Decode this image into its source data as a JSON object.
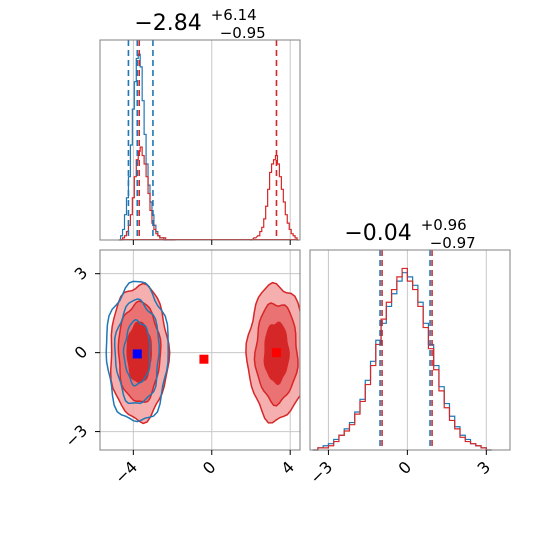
{
  "chart_data": {
    "type": "corner",
    "colors": {
      "red": "#d62728",
      "blue": "#1f77b4",
      "grid": "#c8c8c8",
      "axis": "#808080"
    },
    "param1": {
      "title": {
        "median": "−2.84",
        "plus": "+6.14",
        "minus": "−0.95"
      },
      "ticks": [
        -4,
        0,
        4
      ],
      "tick_labels": [
        "−4",
        "0",
        "4"
      ],
      "xlim": [
        -5.7,
        4.5
      ],
      "blue_quantiles": [
        -4.25,
        -3.8,
        -3.0
      ],
      "red_quantiles": [
        -3.7,
        3.3
      ],
      "hist_blue": {
        "x": [
          -4.7,
          -4.6,
          -4.5,
          -4.4,
          -4.3,
          -4.2,
          -4.1,
          -4.0,
          -3.9,
          -3.8,
          -3.7,
          -3.6,
          -3.5,
          -3.4,
          -3.3,
          -3.2,
          -3.1,
          -3.0,
          -2.9,
          -2.8,
          -2.7,
          -2.6,
          -2.5,
          -2.4
        ],
        "y": [
          0.0,
          0.02,
          0.05,
          0.12,
          0.2,
          0.3,
          0.45,
          0.62,
          0.75,
          0.86,
          0.88,
          0.82,
          0.66,
          0.5,
          0.36,
          0.26,
          0.18,
          0.12,
          0.07,
          0.04,
          0.02,
          0.01,
          0.01,
          0.0
        ]
      },
      "hist_red": {
        "x": [
          -4.6,
          -4.5,
          -4.4,
          -4.3,
          -4.2,
          -4.1,
          -4.0,
          -3.9,
          -3.8,
          -3.7,
          -3.6,
          -3.5,
          -3.4,
          -3.3,
          -3.2,
          -3.1,
          -3.0,
          -2.9,
          -2.8,
          -2.7,
          -2.6,
          -2.5,
          -2.4,
          -2.3,
          -2.2,
          -1.9,
          2.0,
          2.2,
          2.4,
          2.5,
          2.6,
          2.7,
          2.8,
          2.9,
          3.0,
          3.1,
          3.2,
          3.3,
          3.4,
          3.5,
          3.6,
          3.7,
          3.8,
          3.9,
          4.0,
          4.1,
          4.2,
          4.3,
          4.4
        ],
        "y": [
          0.0,
          0.01,
          0.02,
          0.04,
          0.07,
          0.12,
          0.2,
          0.3,
          0.38,
          0.42,
          0.44,
          0.4,
          0.36,
          0.3,
          0.22,
          0.14,
          0.08,
          0.05,
          0.03,
          0.02,
          0.01,
          0.01,
          0.01,
          0.0,
          0.0,
          0.0,
          0.0,
          0.01,
          0.02,
          0.04,
          0.06,
          0.1,
          0.16,
          0.24,
          0.32,
          0.36,
          0.38,
          0.4,
          0.36,
          0.3,
          0.24,
          0.18,
          0.12,
          0.08,
          0.05,
          0.03,
          0.02,
          0.01,
          0.0
        ]
      }
    },
    "param2": {
      "title": {
        "median": "−0.04",
        "plus": "+0.96",
        "minus": "−0.97"
      },
      "ticks": [
        -3,
        0,
        3
      ],
      "tick_labels": [
        "−3",
        "0",
        "3"
      ],
      "lim": [
        -3.7,
        3.9
      ],
      "blue_quantiles": [
        -1.0,
        0.9
      ],
      "red_quantiles": [
        -1.0,
        0.9
      ],
      "hist_blue": {
        "x": [
          -3.5,
          -3.3,
          -3.1,
          -2.9,
          -2.7,
          -2.5,
          -2.3,
          -2.1,
          -1.9,
          -1.7,
          -1.5,
          -1.3,
          -1.1,
          -0.9,
          -0.7,
          -0.5,
          -0.3,
          -0.1,
          0.1,
          0.3,
          0.5,
          0.7,
          0.9,
          1.1,
          1.3,
          1.5,
          1.7,
          1.9,
          2.1,
          2.3,
          2.5,
          2.7,
          2.9,
          3.1
        ],
        "y": [
          0.0,
          0.01,
          0.02,
          0.03,
          0.05,
          0.07,
          0.1,
          0.13,
          0.18,
          0.24,
          0.33,
          0.42,
          0.52,
          0.6,
          0.68,
          0.74,
          0.8,
          0.84,
          0.82,
          0.78,
          0.7,
          0.6,
          0.5,
          0.4,
          0.3,
          0.22,
          0.16,
          0.11,
          0.07,
          0.05,
          0.03,
          0.02,
          0.01,
          0.0
        ]
      },
      "hist_red": {
        "x": [
          -3.5,
          -3.3,
          -3.1,
          -2.9,
          -2.7,
          -2.5,
          -2.3,
          -2.1,
          -1.9,
          -1.7,
          -1.5,
          -1.3,
          -1.1,
          -0.9,
          -0.7,
          -0.5,
          -0.3,
          -0.1,
          0.1,
          0.3,
          0.5,
          0.7,
          0.9,
          1.1,
          1.3,
          1.5,
          1.7,
          1.9,
          2.1,
          2.3,
          2.5,
          2.7,
          2.9,
          3.1
        ],
        "y": [
          0.0,
          0.01,
          0.01,
          0.02,
          0.04,
          0.07,
          0.09,
          0.12,
          0.17,
          0.23,
          0.31,
          0.4,
          0.5,
          0.62,
          0.7,
          0.76,
          0.82,
          0.86,
          0.8,
          0.76,
          0.68,
          0.58,
          0.48,
          0.38,
          0.28,
          0.2,
          0.14,
          0.1,
          0.06,
          0.04,
          0.03,
          0.02,
          0.01,
          0.0
        ]
      }
    },
    "scatter_2d": {
      "blue_cluster_center": [
        -3.8,
        0.0
      ],
      "red_cluster_centers": [
        [
          -3.7,
          0.0
        ],
        [
          3.3,
          0.0
        ]
      ],
      "blue_marker": [
        -3.8,
        -0.05
      ],
      "red_markers": [
        [
          -0.4,
          -0.25
        ],
        [
          3.3,
          0.0
        ]
      ]
    }
  }
}
